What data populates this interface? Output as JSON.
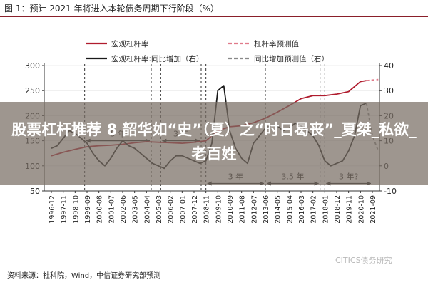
{
  "figure": {
    "title": "图 1：预计 2021 年将进入本轮债务周期下行阶段（%）",
    "source": "资料来源：社科院，Wind，中信证券研究部预测",
    "watermark": "CITICS债务研究"
  },
  "overlay": {
    "text": "股票杠杆推荐 8 韶华如“史”（夏）之“时日曷丧”_夏桀_私欲_老百姓"
  },
  "chart_data": {
    "type": "line",
    "x_ticks": [
      "1996-12",
      "1997-11",
      "1998-10",
      "1999-09",
      "2000-08",
      "2001-07",
      "2002-06",
      "2003-05",
      "2004-04",
      "2005-03",
      "2006-02",
      "2007-01",
      "2007-12",
      "2008-11",
      "2009-10",
      "2010-09",
      "2011-08",
      "2012-07",
      "2013-06",
      "2014-05",
      "2015-04",
      "2016-03",
      "2017-02",
      "2018-01",
      "2018-12",
      "2019-11",
      "2020-10",
      "2021-09"
    ],
    "y_left": {
      "min": 50,
      "max": 300,
      "ticks": [
        50,
        100,
        150,
        200,
        250,
        300
      ]
    },
    "y_right": {
      "min": -10,
      "max": 40,
      "ticks": [
        -10,
        0,
        10,
        20,
        30,
        40
      ]
    },
    "legend": [
      "宏观杠杆率",
      "杠杆率预测值",
      "宏观杠杆率:同比增加（右）",
      "同比增加预测值（右）"
    ],
    "colors": {
      "leverage": "#b01c2e",
      "yoy": "#1a1a1a",
      "forecast_leverage": "#e07a8a",
      "forecast_yoy": "#888888"
    },
    "series": [
      {
        "name": "宏观杠杆率",
        "axis": "left",
        "style": "solid",
        "color_key": "leverage",
        "points": [
          [
            0,
            120
          ],
          [
            1,
            127
          ],
          [
            2,
            133
          ],
          [
            3,
            138
          ],
          [
            4,
            140
          ],
          [
            5,
            141
          ],
          [
            6,
            143
          ],
          [
            7,
            146
          ],
          [
            8,
            148
          ],
          [
            9,
            147
          ],
          [
            10,
            146
          ],
          [
            11,
            145
          ],
          [
            12,
            147
          ],
          [
            13,
            150
          ],
          [
            14,
            170
          ],
          [
            15,
            178
          ],
          [
            16,
            180
          ],
          [
            17,
            186
          ],
          [
            18,
            195
          ],
          [
            19,
            207
          ],
          [
            20,
            220
          ],
          [
            21,
            234
          ],
          [
            22,
            240
          ],
          [
            23,
            240
          ],
          [
            24,
            243
          ],
          [
            25,
            248
          ],
          [
            26,
            268
          ],
          [
            26.5,
            270
          ]
        ]
      },
      {
        "name": "杠杆率预测值",
        "axis": "left",
        "style": "dashed",
        "color_key": "forecast_leverage",
        "points": [
          [
            26.5,
            270
          ],
          [
            27,
            271
          ],
          [
            27.5,
            272
          ]
        ]
      },
      {
        "name": "宏观杠杆率:同比增加（右）",
        "axis": "right",
        "style": "solid",
        "color_key": "yoy",
        "points": [
          [
            0,
            7
          ],
          [
            0.5,
            8
          ],
          [
            1,
            11
          ],
          [
            1.5,
            14
          ],
          [
            2,
            13
          ],
          [
            2.5,
            11
          ],
          [
            3,
            9
          ],
          [
            3.5,
            5
          ],
          [
            4,
            2
          ],
          [
            4.5,
            0
          ],
          [
            5,
            3
          ],
          [
            5.5,
            7
          ],
          [
            6,
            10
          ],
          [
            6.5,
            8
          ],
          [
            7,
            7
          ],
          [
            7.5,
            5
          ],
          [
            8,
            3
          ],
          [
            8.5,
            1
          ],
          [
            9,
            0
          ],
          [
            9.5,
            -1
          ],
          [
            10,
            2
          ],
          [
            10.5,
            4
          ],
          [
            11,
            4
          ],
          [
            11.5,
            3
          ],
          [
            12,
            2
          ],
          [
            12.5,
            1
          ],
          [
            13,
            2
          ],
          [
            13.5,
            9
          ],
          [
            14,
            30
          ],
          [
            14.5,
            32
          ],
          [
            15,
            14
          ],
          [
            15.5,
            7
          ],
          [
            16,
            3
          ],
          [
            16.5,
            1
          ],
          [
            17,
            9
          ],
          [
            17.5,
            12
          ],
          [
            18,
            15
          ],
          [
            18.5,
            16
          ],
          [
            19,
            16
          ],
          [
            19.5,
            14
          ],
          [
            20,
            15
          ],
          [
            20.5,
            17
          ],
          [
            21,
            16
          ],
          [
            21.5,
            14
          ],
          [
            22,
            12
          ],
          [
            22.5,
            8
          ],
          [
            23,
            2
          ],
          [
            23.5,
            0
          ],
          [
            24,
            1
          ],
          [
            24.5,
            2
          ],
          [
            25,
            6
          ],
          [
            25.5,
            12
          ],
          [
            26,
            24
          ],
          [
            26.5,
            25
          ]
        ]
      },
      {
        "name": "同比增加预测值（右）",
        "axis": "right",
        "style": "dashed",
        "color_key": "forecast_yoy",
        "points": [
          [
            26.5,
            25
          ],
          [
            27,
            12
          ],
          [
            27.5,
            6
          ]
        ]
      }
    ],
    "cycle_annotations": [
      {
        "label": "5 年",
        "x_start": 2.8,
        "x_end": 8.4,
        "axis_value": 150,
        "axis": "left"
      },
      {
        "label": "3 年",
        "x_start": 9.2,
        "x_end": 12.6,
        "axis_value": 150,
        "axis": "left"
      },
      {
        "label": "3 年",
        "x_start": 13,
        "x_end": 18,
        "axis_value": 65,
        "axis": "left"
      },
      {
        "label": "3.5 年",
        "x_start": 18,
        "x_end": 22.6,
        "axis_value": 65,
        "axis": "left"
      },
      {
        "label": "3 年?",
        "x_start": 23,
        "x_end": 27,
        "axis_value": 65,
        "axis": "left"
      }
    ],
    "cycle_markers_x": [
      2.8,
      8.4,
      9.2,
      12.6,
      13.0,
      18.0,
      22.6,
      23.0
    ]
  }
}
